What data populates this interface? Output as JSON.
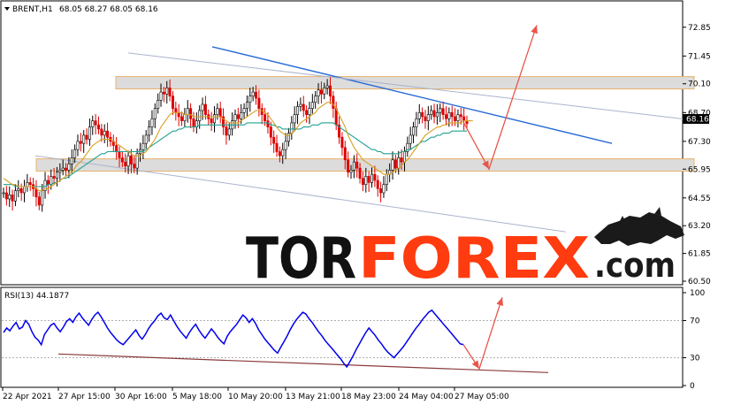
{
  "chart_data": [
    {
      "type": "candlestick",
      "symbol_label": "BRENT,H1",
      "ohlc_label": "68.05 68.27 68.05 68.16",
      "last_price": "68.16",
      "ylim": [
        60.5,
        73.4
      ],
      "y_ticks": [
        "72.85",
        "71.45",
        "70.10",
        "68.70",
        "67.30",
        "65.95",
        "64.55",
        "63.20",
        "61.85",
        "60.50"
      ],
      "x_ticks": [
        "22 Apr 2021",
        "27 Apr 15:00",
        "30 Apr 16:00",
        "5 May 18:00",
        "10 May 20:00",
        "13 May 21:00",
        "18 May 23:00",
        "24 May 04:00",
        "27 May 05:00"
      ],
      "close": [
        64.8,
        64.5,
        64.7,
        64.4,
        64.9,
        65.0,
        64.8,
        65.1,
        65.3,
        65.2,
        65.0,
        64.6,
        64.2,
        64.9,
        65.4,
        65.2,
        65.6,
        65.5,
        65.8,
        65.9,
        66.0,
        65.9,
        66.2,
        66.5,
        66.9,
        67.3,
        67.2,
        67.6,
        67.4,
        68.0,
        68.3,
        68.1,
        67.9,
        67.6,
        67.8,
        67.5,
        67.3,
        67.1,
        66.8,
        66.5,
        66.3,
        66.1,
        66.6,
        66.2,
        66.0,
        66.7,
        66.9,
        67.2,
        67.6,
        68.0,
        68.4,
        68.9,
        69.3,
        69.7,
        69.6,
        69.9,
        69.5,
        68.9,
        68.7,
        68.5,
        68.3,
        68.6,
        68.9,
        68.4,
        68.0,
        68.3,
        68.8,
        69.1,
        68.6,
        68.4,
        68.2,
        68.6,
        68.9,
        68.5,
        68.0,
        67.6,
        67.9,
        68.3,
        68.6,
        68.4,
        68.7,
        68.9,
        69.2,
        69.5,
        69.7,
        69.4,
        68.9,
        68.6,
        68.3,
        68.0,
        67.5,
        67.2,
        66.8,
        66.6,
        66.9,
        67.3,
        67.7,
        68.2,
        68.6,
        69.0,
        69.1,
        68.8,
        68.6,
        68.9,
        69.2,
        69.5,
        69.8,
        69.6,
        69.9,
        70.0,
        69.5,
        68.9,
        68.1,
        67.5,
        67.0,
        66.4,
        65.8,
        65.9,
        66.3,
        66.0,
        65.5,
        65.2,
        65.6,
        65.3,
        65.7,
        65.4,
        65.0,
        64.8,
        65.2,
        65.7,
        65.9,
        66.4,
        66.0,
        66.5,
        66.3,
        66.8,
        67.2,
        67.6,
        68.0,
        68.4,
        68.7,
        68.5,
        68.3,
        68.6,
        68.8,
        68.5,
        68.7,
        68.9,
        68.6,
        68.4,
        68.7,
        68.5,
        68.3,
        68.6,
        68.5,
        68.3,
        68.16
      ],
      "ma_fast": [
        65.5,
        65.4,
        65.3,
        65.2,
        65.2,
        65.1,
        65.1,
        65.1,
        65.1,
        65.1,
        65.1,
        65.0,
        64.9,
        64.9,
        65.0,
        65.0,
        65.1,
        65.2,
        65.3,
        65.4,
        65.5,
        65.6,
        65.7,
        65.8,
        66.0,
        66.2,
        66.3,
        66.5,
        66.7,
        66.9,
        67.1,
        67.2,
        67.3,
        67.4,
        67.4,
        67.4,
        67.4,
        67.3,
        67.2,
        67.1,
        67.0,
        66.9,
        66.8,
        66.7,
        66.6,
        66.6,
        66.6,
        66.7,
        66.8,
        67.0,
        67.2,
        67.4,
        67.7,
        68.0,
        68.2,
        68.4,
        68.6,
        68.7,
        68.7,
        68.7,
        68.7,
        68.6,
        68.6,
        68.6,
        68.5,
        68.5,
        68.5,
        68.5,
        68.5,
        68.5,
        68.5,
        68.5,
        68.5,
        68.5,
        68.4,
        68.3,
        68.2,
        68.2,
        68.2,
        68.2,
        68.3,
        68.4,
        68.5,
        68.6,
        68.7,
        68.8,
        68.8,
        68.8,
        68.7,
        68.6,
        68.4,
        68.2,
        68.0,
        67.8,
        67.7,
        67.6,
        67.6,
        67.7,
        67.8,
        68.0,
        68.2,
        68.3,
        68.4,
        68.5,
        68.6,
        68.7,
        68.9,
        69.0,
        69.1,
        69.2,
        69.2,
        69.1,
        68.9,
        68.6,
        68.3,
        68.0,
        67.6,
        67.3,
        67.0,
        66.8,
        66.6,
        66.4,
        66.3,
        66.2,
        66.1,
        66.0,
        65.9,
        65.8,
        65.7,
        65.7,
        65.7,
        65.8,
        65.9,
        66.0,
        66.1,
        66.3,
        66.4,
        66.6,
        66.8,
        67.0,
        67.2,
        67.4,
        67.6,
        67.7,
        67.8,
        67.9,
        68.0,
        68.0,
        68.1,
        68.1,
        68.2,
        68.2,
        68.2,
        68.2,
        68.2,
        68.3,
        68.3,
        68.3,
        68.3
      ],
      "ma_slow": [
        65.2,
        65.2,
        65.2,
        65.2,
        65.1,
        65.1,
        65.1,
        65.1,
        65.1,
        65.1,
        65.1,
        65.1,
        65.1,
        65.1,
        65.1,
        65.2,
        65.2,
        65.3,
        65.3,
        65.4,
        65.5,
        65.5,
        65.6,
        65.7,
        65.8,
        65.9,
        66.0,
        66.1,
        66.2,
        66.3,
        66.4,
        66.5,
        66.6,
        66.7,
        66.7,
        66.8,
        66.8,
        66.8,
        66.8,
        66.8,
        66.8,
        66.8,
        66.8,
        66.8,
        66.8,
        66.8,
        66.8,
        66.8,
        66.9,
        67.0,
        67.1,
        67.2,
        67.3,
        67.4,
        67.5,
        67.6,
        67.7,
        67.8,
        67.8,
        67.9,
        67.9,
        68.0,
        68.0,
        68.0,
        68.0,
        68.0,
        68.1,
        68.1,
        68.1,
        68.1,
        68.1,
        68.1,
        68.1,
        68.1,
        68.1,
        68.1,
        68.1,
        68.1,
        68.1,
        68.1,
        68.1,
        68.1,
        68.2,
        68.2,
        68.2,
        68.2,
        68.2,
        68.2,
        68.2,
        68.2,
        68.1,
        68.1,
        68.0,
        68.0,
        67.9,
        67.9,
        67.9,
        67.9,
        67.9,
        67.9,
        67.9,
        68.0,
        68.0,
        68.0,
        68.1,
        68.1,
        68.1,
        68.2,
        68.2,
        68.2,
        68.2,
        68.2,
        68.1,
        68.0,
        67.9,
        67.8,
        67.7,
        67.6,
        67.5,
        67.4,
        67.3,
        67.2,
        67.1,
        67.0,
        66.9,
        66.9,
        66.8,
        66.8,
        66.7,
        66.7,
        66.7,
        66.7,
        66.7,
        66.7,
        66.8,
        66.8,
        66.9,
        66.9,
        67.0,
        67.1,
        67.2,
        67.3,
        67.3,
        67.4,
        67.5,
        67.5,
        67.6,
        67.6,
        67.7,
        67.7,
        67.7,
        67.8,
        67.8,
        67.8,
        67.8,
        67.8,
        67.8
      ],
      "zones": [
        {
          "from": 69.85,
          "to": 70.45
        },
        {
          "from": 65.85,
          "to": 66.45
        }
      ],
      "trend_lines": [
        {
          "name": "upper",
          "from": {
            "i": 75,
            "y": 71.9
          },
          "to": {
            "i": 440,
            "y": 67.2
          },
          "color": "#2a6bd6"
        },
        {
          "name": "channel-top",
          "from": {
            "i": 0,
            "y": 71.6
          },
          "to": {
            "i": 440,
            "y": 68.3
          },
          "color": "#aab4cc"
        },
        {
          "name": "channel-bottom",
          "from": {
            "i": 0,
            "y": 66.6
          },
          "to": {
            "i": 440,
            "y": 62.9
          },
          "color": "#aab4cc"
        }
      ],
      "forecast": [
        {
          "y": 68.16
        },
        {
          "y": 65.95
        },
        {
          "y": 72.95
        }
      ],
      "forecast_color": "#e8564b",
      "up_color": "#000000",
      "down_color": "#e00000"
    },
    {
      "type": "line",
      "indicator_label": "RSI(13) 44.1877",
      "ylim": [
        0,
        100
      ],
      "y_ticks": [
        "100",
        "70",
        "30",
        "0"
      ],
      "values": [
        57,
        62,
        59,
        64,
        68,
        61,
        63,
        70,
        66,
        58,
        52,
        49,
        44,
        55,
        60,
        65,
        67,
        62,
        58,
        63,
        69,
        72,
        68,
        74,
        78,
        73,
        69,
        65,
        71,
        76,
        79,
        74,
        68,
        62,
        57,
        53,
        49,
        46,
        44,
        48,
        52,
        56,
        60,
        54,
        50,
        55,
        61,
        66,
        70,
        75,
        78,
        73,
        71,
        76,
        70,
        64,
        59,
        55,
        51,
        57,
        62,
        66,
        60,
        55,
        51,
        56,
        61,
        57,
        52,
        48,
        45,
        53,
        58,
        62,
        66,
        71,
        76,
        73,
        68,
        72,
        67,
        60,
        55,
        50,
        46,
        42,
        38,
        35,
        41,
        47,
        53,
        60,
        66,
        71,
        75,
        79,
        77,
        72,
        68,
        63,
        58,
        54,
        49,
        45,
        41,
        37,
        33,
        29,
        24,
        20,
        26,
        32,
        39,
        45,
        51,
        57,
        62,
        58,
        54,
        49,
        45,
        40,
        36,
        33,
        30,
        34,
        38,
        42,
        47,
        52,
        57,
        62,
        66,
        71,
        75,
        79,
        81,
        77,
        73,
        69,
        65,
        61,
        57,
        53,
        49,
        45,
        44.19
      ],
      "line_color": "#0000ee",
      "level_lines": [
        30,
        70
      ],
      "divergence_line": {
        "from": {
          "i": 0,
          "y": 34
        },
        "to": {
          "i": 156,
          "y": 14
        },
        "color": "#8b3a3a"
      },
      "forecast": [
        {
          "y": 44.19
        },
        {
          "y": 18
        },
        {
          "y": 95
        }
      ],
      "forecast_color": "#e8564b"
    }
  ],
  "watermark": {
    "part1": "TOR",
    "part2": "FOREX",
    "part3": ".com",
    "color1": "#111111",
    "color2": "#ff3b10"
  }
}
